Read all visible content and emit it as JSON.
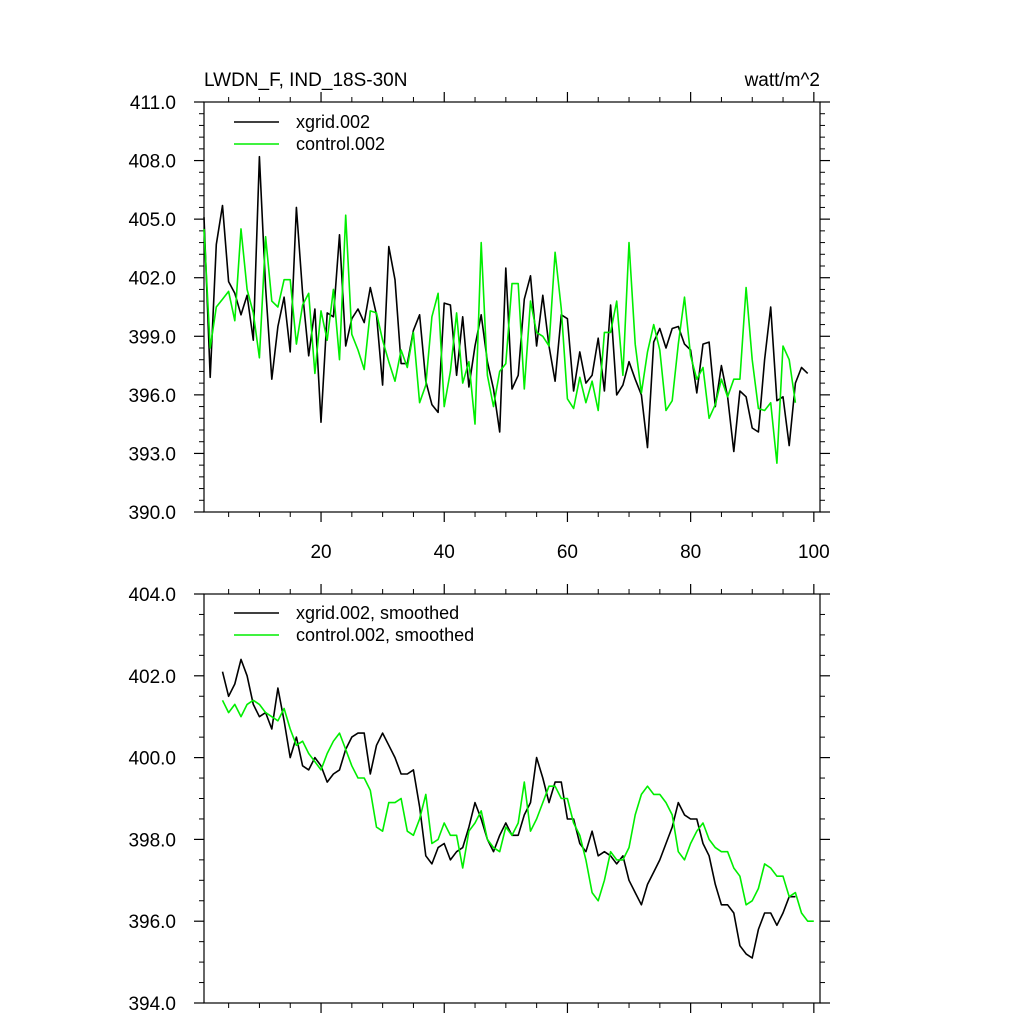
{
  "figure": {
    "title_left": "LWDN_F, IND_18S-30N",
    "title_right": "watt/m^2"
  },
  "chart_data": [
    {
      "type": "line",
      "title": "LWDN_F, IND_18S-30N",
      "units": "watt/m^2",
      "xlim": [
        1,
        101
      ],
      "ylim": [
        390,
        411
      ],
      "x_ticks": [
        20,
        40,
        60,
        80,
        100
      ],
      "y_ticks": [
        390.0,
        393.0,
        396.0,
        399.0,
        402.0,
        405.0,
        408.0,
        411.0
      ],
      "y_tick_labels": [
        "390.0",
        "393.0",
        "396.0",
        "399.0",
        "402.0",
        "405.0",
        "408.0",
        "411.0"
      ],
      "x_tick_labels": [
        "20",
        "40",
        "60",
        "80",
        "100"
      ],
      "legend": "top-left",
      "series": [
        {
          "name": "xgrid.002",
          "color": "#000000",
          "x_start": 1,
          "values": [
            405.1,
            396.9,
            403.7,
            405.7,
            401.8,
            401.2,
            400.1,
            401.1,
            398.8,
            408.2,
            401.5,
            396.8,
            399.5,
            401.0,
            398.2,
            405.6,
            401.2,
            398.0,
            400.4,
            394.6,
            400.2,
            400.0,
            404.2,
            398.5,
            399.9,
            400.4,
            399.7,
            401.5,
            400.1,
            396.5,
            403.6,
            401.9,
            397.6,
            397.6,
            399.3,
            400.1,
            396.7,
            395.5,
            395.1,
            400.7,
            400.6,
            397.0,
            400.0,
            396.4,
            398.5,
            400.1,
            397.7,
            396.3,
            394.1,
            402.5,
            396.3,
            397.0,
            400.9,
            402.1,
            398.5,
            401.1,
            398.5,
            396.7,
            400.1,
            399.9,
            396.2,
            398.2,
            396.6,
            397.0,
            398.9,
            396.2,
            400.6,
            396.0,
            396.5,
            397.7,
            396.8,
            396.0,
            393.3,
            398.7,
            399.4,
            398.4,
            399.4,
            399.5,
            398.6,
            398.3,
            396.1,
            398.6,
            398.7,
            395.4,
            397.5,
            395.9,
            393.1,
            396.2,
            395.9,
            394.3,
            394.1,
            397.8,
            400.5,
            395.7,
            395.9,
            393.4,
            396.6,
            397.4,
            397.1
          ]
        },
        {
          "name": "control.002",
          "color": "#00ee00",
          "x_start": 1,
          "values": [
            404.5,
            398.4,
            400.5,
            400.9,
            401.3,
            399.8,
            404.5,
            401.4,
            400.2,
            397.9,
            404.1,
            400.8,
            400.5,
            401.9,
            401.9,
            398.6,
            400.6,
            401.2,
            397.1,
            400.3,
            398.8,
            401.4,
            397.8,
            405.2,
            399.1,
            398.3,
            397.3,
            400.3,
            400.2,
            398.8,
            397.7,
            396.7,
            398.3,
            397.4,
            399.2,
            395.6,
            396.5,
            400.0,
            401.2,
            395.4,
            397.2,
            400.2,
            396.6,
            397.7,
            394.5,
            403.8,
            397.0,
            395.4,
            397.2,
            397.6,
            401.7,
            401.7,
            396.3,
            400.8,
            399.2,
            399.0,
            398.5,
            403.3,
            400.4,
            395.8,
            395.3,
            396.9,
            395.6,
            396.7,
            395.2,
            399.2,
            399.2,
            400.8,
            397.0,
            403.8,
            398.6,
            396.1,
            398.2,
            399.6,
            398.3,
            395.2,
            395.7,
            398.6,
            401.0,
            398.0,
            396.8,
            397.4,
            394.8,
            395.5,
            396.8,
            395.9,
            396.8,
            396.8,
            401.5,
            397.8,
            395.3,
            395.2,
            395.6,
            392.5,
            398.5,
            397.8,
            395.6
          ]
        }
      ]
    },
    {
      "type": "line",
      "xlim": [
        1,
        101
      ],
      "ylim": [
        394,
        404
      ],
      "y_ticks": [
        394.0,
        396.0,
        398.0,
        400.0,
        402.0,
        404.0
      ],
      "y_tick_labels": [
        "394.0",
        "396.0",
        "398.0",
        "400.0",
        "402.0",
        "404.0"
      ],
      "legend": "top-left",
      "series": [
        {
          "name": "xgrid.002, smoothed",
          "color": "#000000",
          "x_start": 4,
          "values": [
            402.1,
            401.5,
            401.8,
            402.4,
            402.0,
            401.3,
            401.0,
            401.1,
            400.7,
            401.7,
            400.9,
            400.0,
            400.5,
            399.8,
            399.7,
            400.0,
            399.8,
            399.4,
            399.6,
            399.7,
            400.2,
            400.5,
            400.6,
            400.6,
            399.6,
            400.3,
            400.6,
            400.3,
            400.0,
            399.6,
            399.6,
            399.7,
            398.8,
            397.6,
            397.4,
            397.8,
            397.9,
            397.5,
            397.7,
            397.8,
            398.3,
            398.9,
            398.5,
            398.0,
            397.7,
            398.1,
            398.4,
            398.1,
            398.1,
            398.6,
            398.9,
            400.0,
            399.5,
            398.9,
            399.4,
            399.4,
            398.5,
            398.5,
            397.9,
            397.7,
            398.2,
            397.6,
            397.7,
            397.6,
            397.4,
            397.6,
            397.0,
            396.7,
            396.4,
            396.9,
            397.2,
            397.5,
            397.9,
            398.3,
            398.9,
            398.6,
            398.5,
            398.5,
            397.9,
            397.6,
            396.9,
            396.4,
            396.4,
            396.2,
            395.4,
            395.2,
            395.1,
            395.8,
            396.2,
            396.2,
            395.9,
            396.2,
            396.6,
            396.6
          ]
        },
        {
          "name": "control.002, smoothed",
          "color": "#00ee00",
          "x_start": 4,
          "values": [
            401.4,
            401.1,
            401.3,
            401.0,
            401.3,
            401.4,
            401.3,
            401.1,
            401.0,
            400.9,
            401.2,
            400.7,
            400.3,
            400.4,
            400.1,
            399.9,
            399.7,
            400.1,
            400.4,
            400.6,
            400.2,
            399.8,
            399.5,
            399.5,
            399.2,
            398.3,
            398.2,
            398.9,
            398.9,
            399.0,
            398.2,
            398.1,
            398.5,
            399.1,
            397.9,
            398.0,
            398.4,
            398.1,
            398.1,
            397.3,
            398.2,
            398.4,
            398.7,
            398.0,
            397.8,
            397.7,
            398.3,
            398.1,
            398.4,
            399.4,
            398.2,
            398.5,
            398.9,
            399.3,
            399.3,
            399.0,
            399.0,
            398.4,
            398.1,
            397.5,
            396.7,
            396.5,
            397.0,
            397.7,
            397.5,
            397.5,
            397.8,
            398.6,
            399.1,
            399.3,
            399.1,
            399.1,
            398.9,
            398.6,
            397.7,
            397.5,
            397.9,
            398.2,
            398.4,
            398.0,
            397.8,
            397.7,
            397.7,
            397.3,
            397.1,
            396.4,
            396.5,
            396.8,
            397.4,
            397.3,
            397.1,
            397.1,
            396.6,
            396.7,
            396.2,
            396.0,
            396.0
          ]
        }
      ]
    }
  ]
}
